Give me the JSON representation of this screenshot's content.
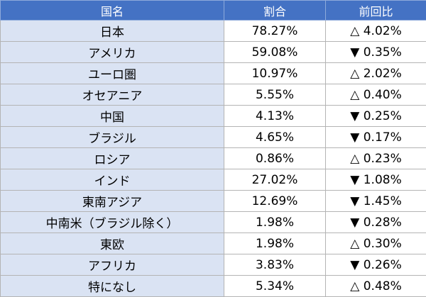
{
  "table": {
    "header": [
      "国名",
      "割合",
      "前回比"
    ],
    "rows": [
      [
        "日本",
        "78.27%",
        "△ 4.02%"
      ],
      [
        "アメリカ",
        "59.08%",
        "▼ 0.35%"
      ],
      [
        "ユーロ圏",
        "10.97%",
        "△ 2.02%"
      ],
      [
        "オセアニア",
        "5.55%",
        "△ 0.40%"
      ],
      [
        "中国",
        "4.13%",
        "▼ 0.25%"
      ],
      [
        "ブラジル",
        "4.65%",
        "▼ 0.17%"
      ],
      [
        "ロシア",
        "0.86%",
        "△ 0.23%"
      ],
      [
        "インド",
        "27.02%",
        "▼ 1.08%"
      ],
      [
        "東南アジア",
        "12.69%",
        "▼ 1.45%"
      ],
      [
        "中南米（ブラジル除く）",
        "1.98%",
        "▼ 0.28%"
      ],
      [
        "東欧",
        "1.98%",
        "△ 0.30%"
      ],
      [
        "アフリカ",
        "3.83%",
        "▼ 0.26%"
      ],
      [
        "特になし",
        "5.34%",
        "△ 0.48%"
      ]
    ]
  }
}
